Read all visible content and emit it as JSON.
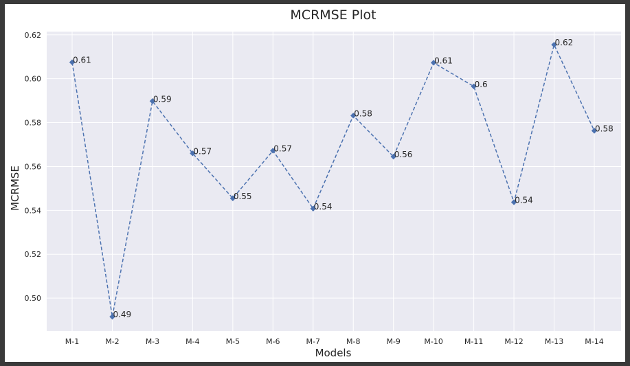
{
  "chart_data": {
    "type": "line",
    "title": "MCRMSE Plot",
    "xlabel": "Models",
    "ylabel": "MCRMSE",
    "categories": [
      "M-1",
      "M-2",
      "M-3",
      "M-4",
      "M-5",
      "M-6",
      "M-7",
      "M-8",
      "M-9",
      "M-10",
      "M-11",
      "M-12",
      "M-13",
      "M-14"
    ],
    "values": [
      0.6075,
      0.4915,
      0.5898,
      0.566,
      0.5455,
      0.5672,
      0.5408,
      0.5832,
      0.5645,
      0.6073,
      0.5965,
      0.5437,
      0.6155,
      0.5763
    ],
    "data_labels": [
      "0.61",
      "0.49",
      "0.59",
      "0.57",
      "0.55",
      "0.57",
      "0.54",
      "0.58",
      "0.56",
      "0.61",
      "0.6",
      "0.54",
      "0.62",
      "0.58"
    ],
    "yticks": [
      "0.50",
      "0.52",
      "0.54",
      "0.56",
      "0.58",
      "0.60",
      "0.62"
    ],
    "ylim": [
      0.485,
      0.6215
    ],
    "grid": true,
    "line_style": "dashed",
    "marker": "diamond",
    "colors": {
      "series": "#4c72b0",
      "plot_bg": "#eaeaf2",
      "grid": "#ffffff",
      "frame": "#3a3a3a"
    }
  }
}
